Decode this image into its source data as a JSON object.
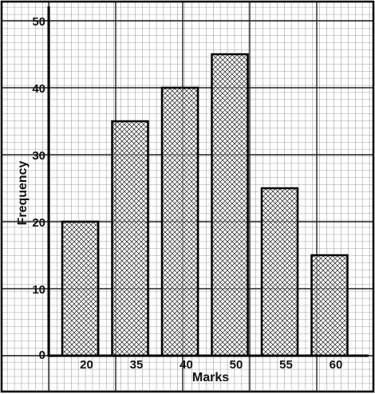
{
  "chart_data": {
    "type": "bar",
    "categories": [
      "20",
      "35",
      "40",
      "50",
      "55",
      "60"
    ],
    "values": [
      20,
      35,
      40,
      45,
      25,
      15
    ],
    "title": "",
    "xlabel": "Marks",
    "ylabel": "Frequency",
    "ylim": [
      0,
      50
    ],
    "yticks": [
      0,
      10,
      20,
      30,
      40,
      50
    ],
    "grid": true,
    "bar_fill": "crosshatch",
    "colors": {
      "grid": "#3a3a3a",
      "bar_stroke": "#000000",
      "background": "#ffffff"
    }
  }
}
